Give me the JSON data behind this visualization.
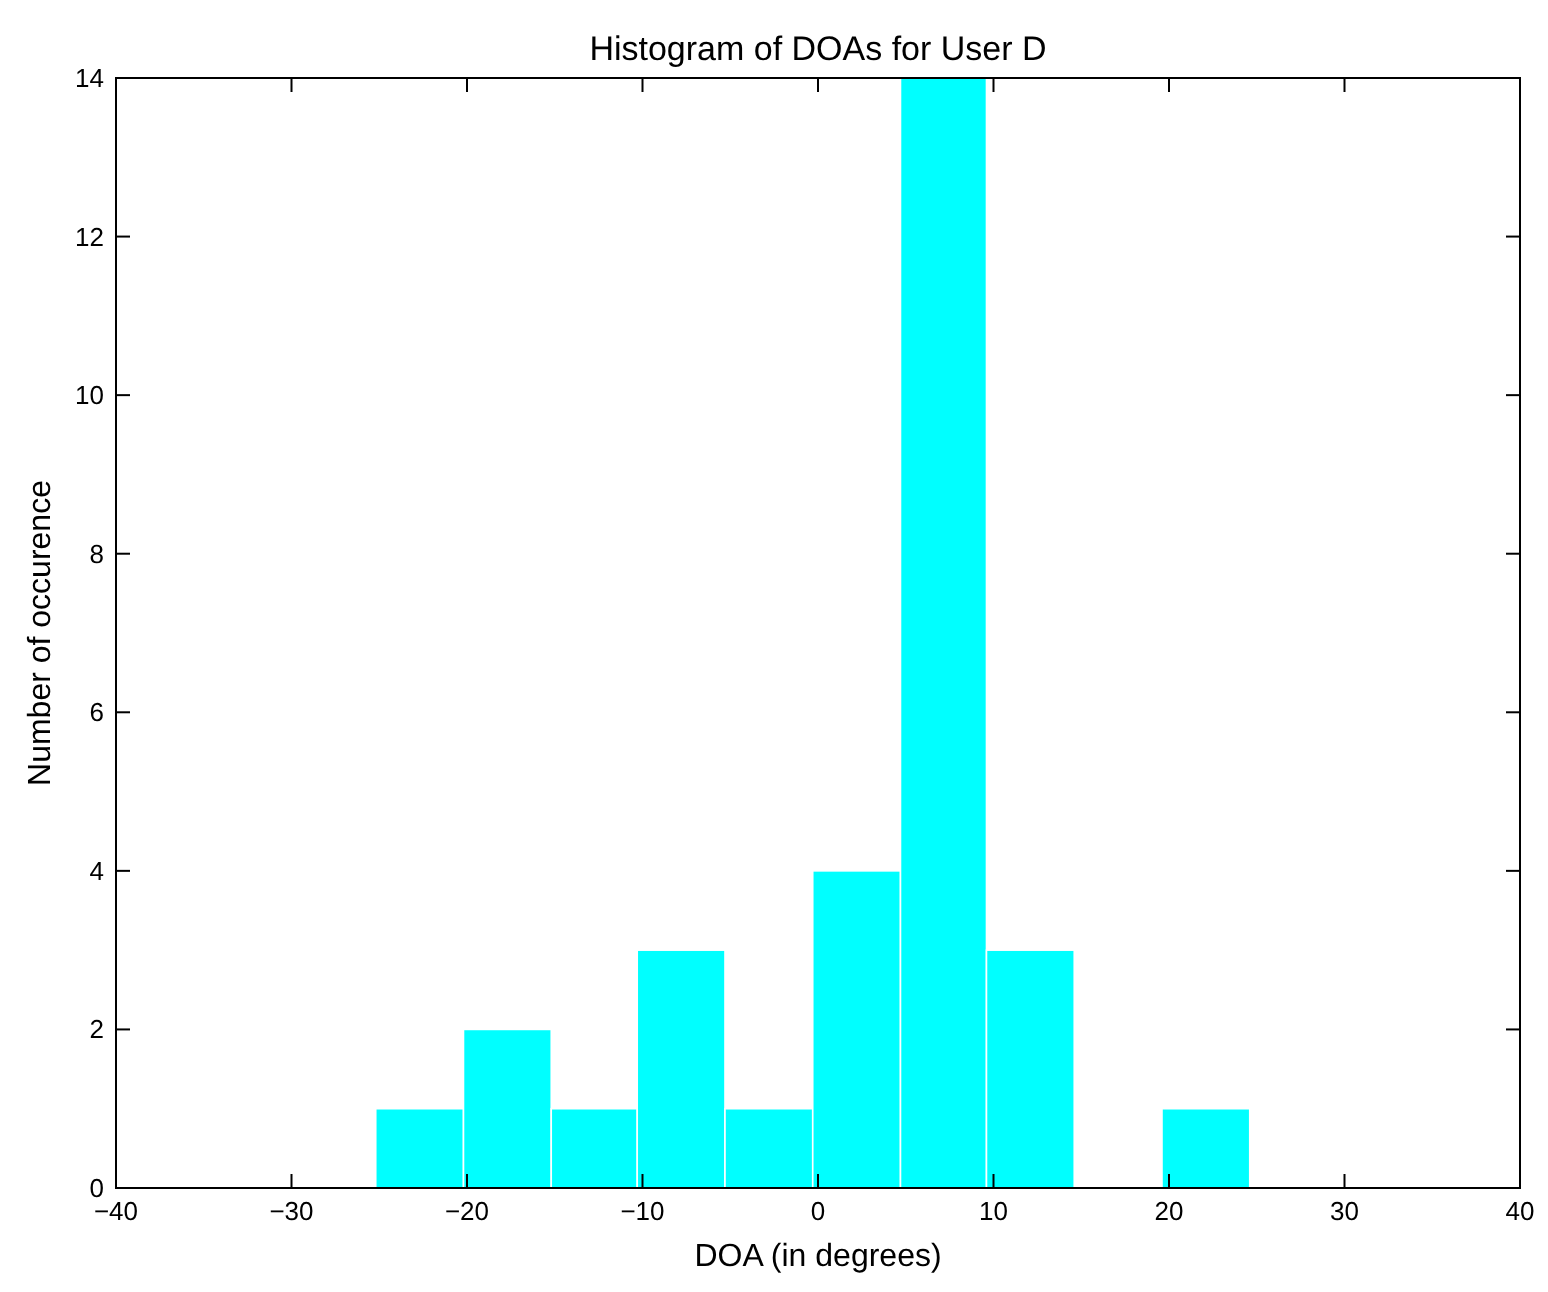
{
  "chart_data": {
    "type": "histogram",
    "title": "Histogram of DOAs for User D",
    "xlabel": "DOA (in degrees)",
    "ylabel": "Number of occurence",
    "bins": [
      -25.2,
      -20.2,
      -15.2,
      -10.3,
      -5.3,
      -0.3,
      4.7,
      9.6,
      14.6,
      19.6,
      24.6
    ],
    "values": [
      1,
      2,
      1,
      3,
      1,
      4,
      14,
      3,
      0,
      1
    ],
    "color": "#00ffff",
    "xlim": [
      -40,
      40
    ],
    "xticks": [
      -40,
      -30,
      -20,
      -10,
      0,
      10,
      20,
      30,
      40
    ],
    "ylim": [
      0,
      14
    ],
    "yticks": [
      0,
      2,
      4,
      6,
      8,
      10,
      12,
      14
    ],
    "grid": false
  }
}
